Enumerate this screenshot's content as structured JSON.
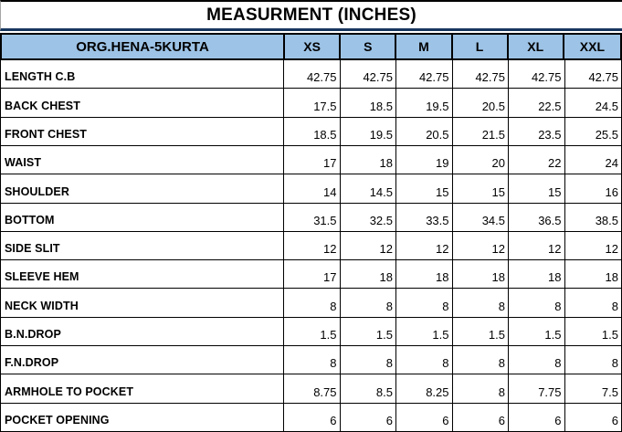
{
  "title": "MEASURMENT (INCHES)",
  "colors": {
    "header_bg": "#9dc3e6",
    "title_bottom_border": "#17365d",
    "grid_line": "#000000",
    "text": "#000000"
  },
  "table": {
    "product": "ORG.HENA-5KURTA",
    "sizes": [
      "XS",
      "S",
      "M",
      "L",
      "XL",
      "XXL"
    ],
    "rows": [
      {
        "label": "LENGTH C.B",
        "values": [
          "42.75",
          "42.75",
          "42.75",
          "42.75",
          "42.75",
          "42.75"
        ]
      },
      {
        "label": "BACK CHEST",
        "values": [
          "17.5",
          "18.5",
          "19.5",
          "20.5",
          "22.5",
          "24.5"
        ]
      },
      {
        "label": "FRONT CHEST",
        "values": [
          "18.5",
          "19.5",
          "20.5",
          "21.5",
          "23.5",
          "25.5"
        ]
      },
      {
        "label": "WAIST",
        "values": [
          "17",
          "18",
          "19",
          "20",
          "22",
          "24"
        ]
      },
      {
        "label": "SHOULDER",
        "values": [
          "14",
          "14.5",
          "15",
          "15",
          "15",
          "16"
        ]
      },
      {
        "label": "BOTTOM",
        "values": [
          "31.5",
          "32.5",
          "33.5",
          "34.5",
          "36.5",
          "38.5"
        ]
      },
      {
        "label": "SIDE SLIT",
        "values": [
          "12",
          "12",
          "12",
          "12",
          "12",
          "12"
        ]
      },
      {
        "label": "SLEEVE HEM",
        "values": [
          "17",
          "18",
          "18",
          "18",
          "18",
          "18"
        ]
      },
      {
        "label": "NECK WIDTH",
        "values": [
          "8",
          "8",
          "8",
          "8",
          "8",
          "8"
        ]
      },
      {
        "label": "B.N.DROP",
        "values": [
          "1.5",
          "1.5",
          "1.5",
          "1.5",
          "1.5",
          "1.5"
        ]
      },
      {
        "label": "F.N.DROP",
        "values": [
          "8",
          "8",
          "8",
          "8",
          "8",
          "8"
        ]
      },
      {
        "label": "ARMHOLE TO POCKET",
        "values": [
          "8.75",
          "8.5",
          "8.25",
          "8",
          "7.75",
          "7.5"
        ]
      },
      {
        "label": "POCKET OPENING",
        "values": [
          "6",
          "6",
          "6",
          "6",
          "6",
          "6"
        ]
      }
    ]
  }
}
